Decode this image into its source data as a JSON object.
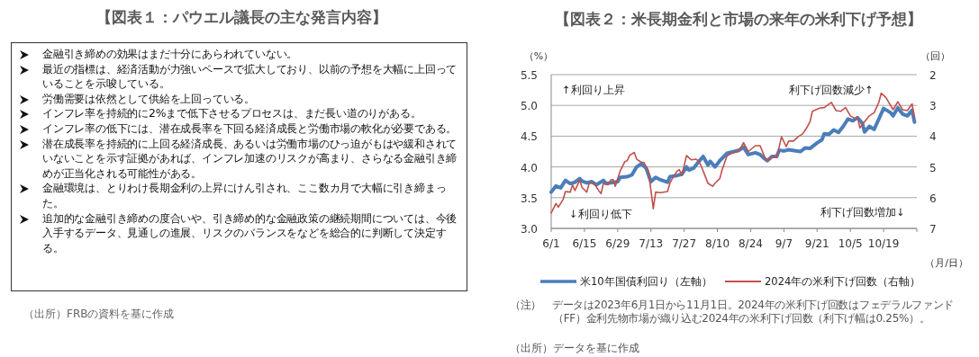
{
  "chart_data": [
    {
      "type": "other",
      "title": "【図表１：パウエル議長の主な発言内容】",
      "annotations": [
        "金融引き締めの効果はまだ十分にあらわれていない。",
        "最近の指標は、経済活動が力強いペースで拡大しており、以前の予想を大幅に上回っていることを示唆している。",
        "労働需要は依然として供給を上回っている。",
        "インフレ率を持続的に2%まで低下させるプロセスは、まだ長い道のりがある。",
        "インフレ率の低下には、潜在成長率を下回る経済成長と労働市場の軟化が必要である。",
        "潜在成長率を持続的に上回る経済成長、あるいは労働市場のひっ迫がもはや緩和されていないことを示す証拠があれば、インフレ加速のリスクが高まり、さらなる金融引き締めが正当化される可能性がある。",
        "金融環境は、とりわけ長期金利の上昇にけん引され、ここ数カ月で大幅に引き締まった。",
        "追加的な金融引き締めの度合いや、引き締め的な金融政策の継続期間については、今後入手するデータ、見通しの進展、リスクのバランスをなどを総合的に判断して決定する。",
        "（出所）FRBの資料を基に作成"
      ]
    },
    {
      "type": "line",
      "title": "【図表２：米長期金利と市場の来年の米利下げ予想】",
      "xlabel": "（月/日）",
      "ylabel": "（%）",
      "y2label": "（回）",
      "xlim": [
        "2023-06-01",
        "2023-11-02"
      ],
      "xticks": [
        {
          "value": "2023-06-01",
          "label": "6/1"
        },
        {
          "value": "2023-06-15",
          "label": "6/15"
        },
        {
          "value": "2023-06-29",
          "label": "6/29"
        },
        {
          "value": "2023-07-13",
          "label": "7/13"
        },
        {
          "value": "2023-07-27",
          "label": "7/27"
        },
        {
          "value": "2023-08-10",
          "label": "8/10"
        },
        {
          "value": "2023-08-24",
          "label": "8/24"
        },
        {
          "value": "2023-09-07",
          "label": "9/7"
        },
        {
          "value": "2023-09-21",
          "label": "9/21"
        },
        {
          "value": "2023-10-05",
          "label": "10/5"
        },
        {
          "value": "2023-10-19",
          "label": "10/19"
        }
      ],
      "ylim": [
        3.0,
        5.5
      ],
      "yticks": [
        {
          "value": 3,
          "label": "3.0"
        },
        3.5,
        {
          "value": 4,
          "label": "4.0"
        },
        4.5,
        {
          "value": 5,
          "label": "5.0"
        },
        5.5
      ],
      "y2lim": [
        7,
        2
      ],
      "y2ticks": [
        2,
        3,
        4,
        5,
        6,
        7
      ],
      "grid": "y",
      "legend": "bottom",
      "series": [
        {
          "name": "米10年国債利回り（左軸）",
          "color": "#4a7ebb",
          "x": [
            "2023-06-01",
            "2023-06-03",
            "2023-06-05",
            "2023-06-07",
            "2023-06-09",
            "2023-06-11",
            "2023-06-13",
            "2023-06-14",
            "2023-06-16",
            "2023-06-18",
            "2023-06-20",
            "2023-06-23",
            "2023-06-24",
            "2023-06-26",
            "2023-06-29",
            "2023-06-30",
            "2023-07-03",
            "2023-07-05",
            "2023-07-07",
            "2023-07-09",
            "2023-07-11",
            "2023-07-13",
            "2023-07-15",
            "2023-07-17",
            "2023-07-20",
            "2023-07-21",
            "2023-07-24",
            "2023-07-26",
            "2023-07-28",
            "2023-07-29",
            "2023-07-31",
            "2023-08-02",
            "2023-08-04",
            "2023-08-06",
            "2023-08-07",
            "2023-08-09",
            "2023-08-11",
            "2023-08-14",
            "2023-08-19",
            "2023-08-21",
            "2023-08-23",
            "2023-08-26",
            "2023-08-28",
            "2023-08-30",
            "2023-08-31",
            "2023-09-02",
            "2023-09-04",
            "2023-09-05",
            "2023-09-07",
            "2023-09-09",
            "2023-09-12",
            "2023-09-14",
            "2023-09-16",
            "2023-09-18",
            "2023-09-21",
            "2023-09-23",
            "2023-09-24",
            "2023-09-26",
            "2023-09-28",
            "2023-09-30",
            "2023-10-02",
            "2023-10-04",
            "2023-10-06",
            "2023-10-08",
            "2023-10-10",
            "2023-10-11",
            "2023-10-13",
            "2023-10-15",
            "2023-10-17",
            "2023-10-19",
            "2023-10-22",
            "2023-10-23",
            "2023-10-25",
            "2023-10-27",
            "2023-10-29",
            "2023-10-31",
            "2023-11-01"
          ],
          "values": [
            3.59,
            3.69,
            3.66,
            3.78,
            3.73,
            3.75,
            3.81,
            3.77,
            3.74,
            3.76,
            3.71,
            3.78,
            3.73,
            3.74,
            3.76,
            3.83,
            3.84,
            3.87,
            4.0,
            4.05,
            3.98,
            3.76,
            3.83,
            3.79,
            3.75,
            3.84,
            3.86,
            3.88,
            4.0,
            3.95,
            3.98,
            4.08,
            4.17,
            4.03,
            4.09,
            4.0,
            4.1,
            4.22,
            4.27,
            4.32,
            4.2,
            4.23,
            4.2,
            4.13,
            4.1,
            4.17,
            4.17,
            4.27,
            4.26,
            4.28,
            4.26,
            4.25,
            4.31,
            4.3,
            4.39,
            4.44,
            4.54,
            4.53,
            4.6,
            4.56,
            4.66,
            4.78,
            4.75,
            4.8,
            4.71,
            4.57,
            4.66,
            4.61,
            4.78,
            4.95,
            4.88,
            4.83,
            4.96,
            4.86,
            4.83,
            4.92,
            4.73
          ]
        },
        {
          "name": "2024年の米利下げ回数（右軸）",
          "color": "#c0504d",
          "axis": "y2",
          "x": [
            "2023-06-01",
            "2023-06-03",
            "2023-06-04",
            "2023-06-06",
            "2023-06-07",
            "2023-06-09",
            "2023-06-10",
            "2023-06-11",
            "2023-06-13",
            "2023-06-14",
            "2023-06-16",
            "2023-06-17",
            "2023-06-19",
            "2023-06-21",
            "2023-06-22",
            "2023-06-23",
            "2023-06-25",
            "2023-06-26",
            "2023-06-27",
            "2023-06-28",
            "2023-06-30",
            "2023-07-02",
            "2023-07-03",
            "2023-07-04",
            "2023-07-06",
            "2023-07-07",
            "2023-07-09",
            "2023-07-10",
            "2023-07-12",
            "2023-07-14",
            "2023-07-15",
            "2023-07-17",
            "2023-07-20",
            "2023-07-21",
            "2023-07-22",
            "2023-07-24",
            "2023-07-25",
            "2023-07-26",
            "2023-07-28",
            "2023-07-29",
            "2023-07-30",
            "2023-08-01",
            "2023-08-02",
            "2023-08-03",
            "2023-08-05",
            "2023-08-06",
            "2023-08-08",
            "2023-08-09",
            "2023-08-11",
            "2023-08-12",
            "2023-08-14",
            "2023-08-16",
            "2023-08-19",
            "2023-08-21",
            "2023-08-23",
            "2023-08-26",
            "2023-08-28",
            "2023-08-30",
            "2023-08-31",
            "2023-09-02",
            "2023-09-04",
            "2023-09-06",
            "2023-09-08",
            "2023-09-09",
            "2023-09-11",
            "2023-09-13",
            "2023-09-15",
            "2023-09-17",
            "2023-09-18",
            "2023-09-19",
            "2023-09-22",
            "2023-09-24",
            "2023-09-27",
            "2023-09-29",
            "2023-10-01",
            "2023-10-03",
            "2023-10-05",
            "2023-10-07",
            "2023-10-08",
            "2023-10-09",
            "2023-10-11",
            "2023-10-13",
            "2023-10-15",
            "2023-10-17",
            "2023-10-18",
            "2023-10-20",
            "2023-10-23",
            "2023-10-25",
            "2023-10-27",
            "2023-10-29",
            "2023-10-31",
            "2023-11-01"
          ],
          "values": [
            6.5,
            6.19,
            6.31,
            6.06,
            5.8,
            5.82,
            5.58,
            5.77,
            5.43,
            5.67,
            5.82,
            5.53,
            5.53,
            5.77,
            5.87,
            5.53,
            5.58,
            5.43,
            5.41,
            5.63,
            5.14,
            4.83,
            4.8,
            4.63,
            4.53,
            4.75,
            4.85,
            4.85,
            5.14,
            6.36,
            5.82,
            5.84,
            5.8,
            5.53,
            5.38,
            5.14,
            5.09,
            5.28,
            4.63,
            4.7,
            4.77,
            4.75,
            4.8,
            4.94,
            5.33,
            5.53,
            5.63,
            5.53,
            5.38,
            5.09,
            4.65,
            4.55,
            4.5,
            4.21,
            4.5,
            4.31,
            4.31,
            4.7,
            4.8,
            4.65,
            4.7,
            4.02,
            4.34,
            4.16,
            4.16,
            4.02,
            3.92,
            3.68,
            3.53,
            3.19,
            3.09,
            3.07,
            2.9,
            3.17,
            3.19,
            3.07,
            3.34,
            3.43,
            3.38,
            3.73,
            3.53,
            3.34,
            3.24,
            2.9,
            2.6,
            2.75,
            3.14,
            2.88,
            3.14,
            3.17,
            2.95,
            3.43
          ]
        }
      ],
      "annotations": [
        "↑利回り上昇",
        "↓利回り低下",
        "利下げ回数減少↑",
        "利下げ回数増加↓",
        "（注）　データは2023年6月1日から11月1日。2024年の米利下げ回数はフェデラルファンド（FF）金利先物市場が織り込む2024年の米利下げ回数（利下げ幅は0.25%）。",
        "（出所）データを基に作成"
      ]
    }
  ]
}
